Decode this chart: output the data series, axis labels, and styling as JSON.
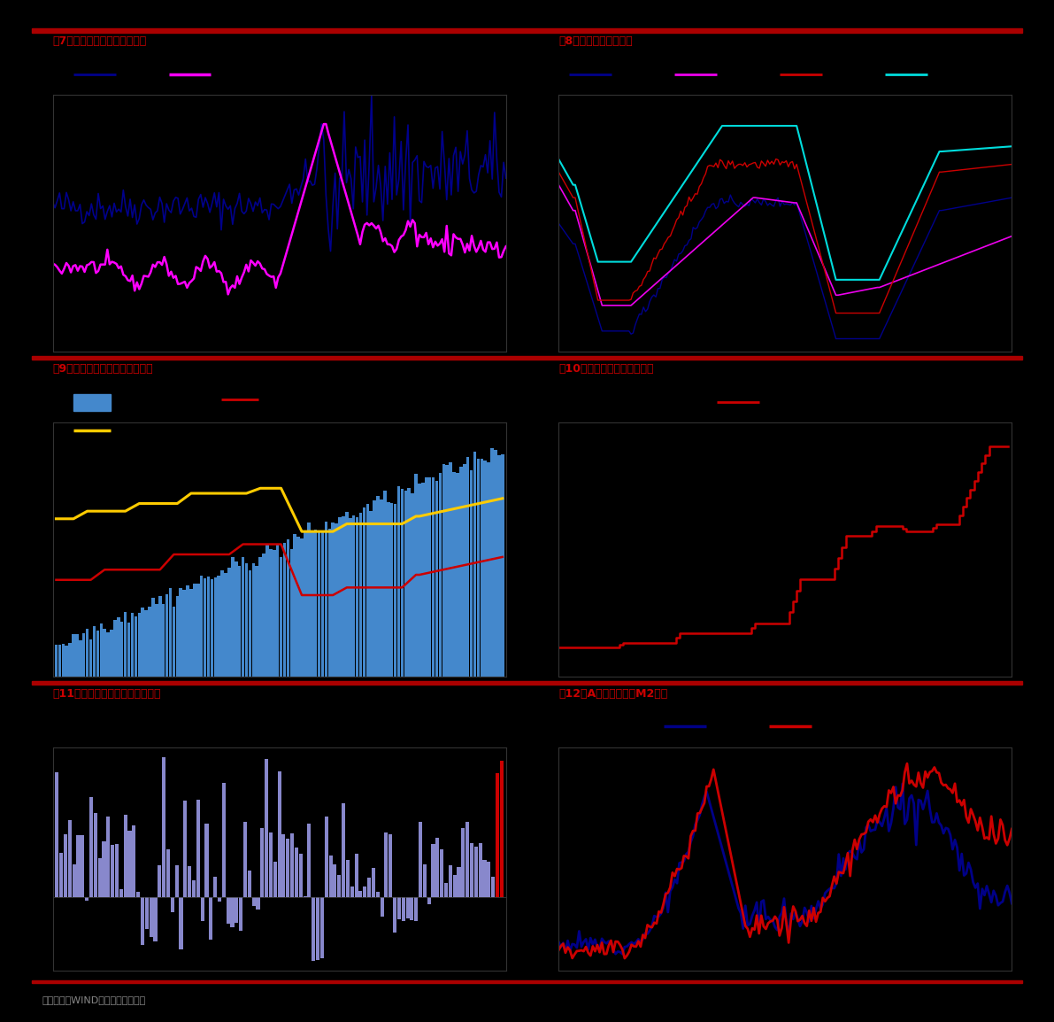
{
  "fig7_title": "图7：外汇储备中不可解释部分",
  "fig8_title": "图8：央行票据发行利率",
  "fig9_title": "图9：一年期存款利率及储蓄余额",
  "fig10_title": "图10：大型金融机构准备金率",
  "fig11_title": "图11：央行操作净投放量（亿元）",
  "fig12_title": "图12：A股流通市值与M2比值",
  "footer": "数据来源：WIND，东方证券研究所",
  "bg_color": "#000000",
  "title_color": "#cc0000",
  "divider_color": "#aa0000",
  "fig7_navy": "#00008b",
  "fig7_magenta": "#ff00ff",
  "fig8_navy": "#00008b",
  "fig8_magenta": "#ee00ee",
  "fig8_red": "#cc0000",
  "fig8_cyan": "#00dddd",
  "fig9_blue": "#4488cc",
  "fig9_yellow": "#ffcc00",
  "fig9_red": "#cc0000",
  "fig10_red": "#cc0000",
  "fig11_blue": "#8888cc",
  "fig11_red": "#cc0000",
  "fig12_navy": "#000088",
  "fig12_red": "#cc0000",
  "footer_color": "#888888"
}
